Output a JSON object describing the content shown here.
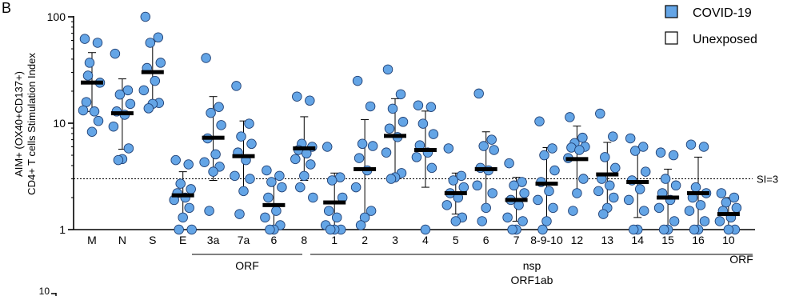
{
  "panel_label": "B",
  "chart_data": {
    "type": "scatter",
    "subtype": "dot plot with geometric mean and 95% CI",
    "ylabel_line1": "AIM+ (OX40+CD137+)",
    "ylabel_line2": "CD4+ T cells Stimulation Index",
    "yscale": "log",
    "ylim": [
      1,
      100
    ],
    "yticks": [
      {
        "value": 1,
        "label": "1"
      },
      {
        "value": 10,
        "label": "10"
      },
      {
        "value": 100,
        "label": "100"
      }
    ],
    "categories": [
      "M",
      "N",
      "S",
      "E",
      "3a",
      "7a",
      "6",
      "8",
      "1",
      "2",
      "3",
      "4",
      "5",
      "6",
      "7",
      "8-9-10",
      "12",
      "13",
      "14",
      "15",
      "16",
      "10"
    ],
    "group_labels": [
      {
        "label": "ORF",
        "from": 4,
        "to": 7
      },
      {
        "label": "nsp",
        "from": 7,
        "to": 20
      },
      {
        "label": "ORF1ab",
        "from": 7,
        "to": 20
      },
      {
        "label": "ORF",
        "from": 21,
        "to": 21
      }
    ],
    "reference_line": {
      "value": 3,
      "label": "SI=3",
      "style": "dotted"
    },
    "legend": [
      {
        "label": "COVID-19",
        "color": "#64a5e6",
        "filled": true
      },
      {
        "label": "Unexposed",
        "color": "#ffffff",
        "filled": false
      }
    ],
    "legend_position": "top-right",
    "point_color": "#64a5e6",
    "series": [
      {
        "name": "COVID-19",
        "groups": [
          {
            "category": "M",
            "mean": 24.1,
            "ci": [
              12.9,
              46.1
            ],
            "points": [
              62,
              57,
              37,
              24,
              15.8,
              12.9,
              13.2,
              10.5,
              8.3,
              28
            ]
          },
          {
            "category": "N",
            "mean": 12.4,
            "ci": [
              5.7,
              26.1
            ],
            "points": [
              45,
              20.4,
              18.6,
              15.2,
              12.9,
              12.0,
              9.3,
              5.8,
              4.6,
              4.5
            ]
          },
          {
            "category": "S",
            "mean": 30.2,
            "ci": [
              15.7,
              58.5
            ],
            "points": [
              100,
              64,
              57,
              37,
              33,
              25,
              20.4,
              15.5,
              15.2,
              13.8
            ]
          },
          {
            "category": "E",
            "mean": 2.1,
            "ci": [
              1.25,
              3.5
            ],
            "points": [
              4.5,
              4.1,
              2.7,
              2.4,
              2.2,
              2.0,
              1.9,
              1.6,
              1.3,
              1.0,
              1.0
            ]
          },
          {
            "category": "3a",
            "mean": 7.3,
            "ci": [
              2.9,
              17.8
            ],
            "points": [
              41,
              14.2,
              12.5,
              9.6,
              7.2,
              5.1,
              4.3,
              3.9,
              3.5,
              1.5
            ]
          },
          {
            "category": "7a",
            "mean": 4.9,
            "ci": [
              2.3,
              10.5
            ],
            "points": [
              22.4,
              9.9,
              7.5,
              6.4,
              5.3,
              4.5,
              3.2,
              3.0,
              2.3,
              1.4
            ]
          },
          {
            "category": "6",
            "mean": 1.7,
            "ci": [
              1.0,
              3.0
            ],
            "points": [
              3.6,
              3.2,
              2.8,
              2.5,
              2.0,
              1.5,
              1.3,
              1.1,
              1.0,
              1.0
            ]
          },
          {
            "category": "8",
            "mean": 5.8,
            "ci": [
              2.9,
              11.5
            ],
            "points": [
              17.8,
              16.3,
              6.4,
              6.0,
              5.6,
              5.2,
              4.6,
              4.1,
              3.2,
              2.5,
              2.0
            ]
          },
          {
            "category": "1",
            "mean": 1.8,
            "ci": [
              1.0,
              3.4
            ],
            "points": [
              6.0,
              3.1,
              2.9,
              2.0,
              1.5,
              1.3,
              1.1,
              1.0,
              1.0,
              1.0
            ]
          },
          {
            "category": "2",
            "mean": 3.7,
            "ci": [
              1.3,
              10.8
            ],
            "points": [
              25,
              14.4,
              6.4,
              6.1,
              4.7,
              3.6,
              2.5,
              1.5,
              1.3,
              1.1
            ]
          },
          {
            "category": "3",
            "mean": 7.6,
            "ci": [
              3.3,
              17.0
            ],
            "points": [
              32,
              18.7,
              13.7,
              10.3,
              8.9,
              7.4,
              5.3,
              3.4,
              3.1,
              3.0
            ]
          },
          {
            "category": "4",
            "mean": 5.6,
            "ci": [
              2.5,
              13.0
            ],
            "points": [
              14.7,
              14.2,
              9.9,
              7.9,
              6.2,
              5.3,
              4.8,
              3.8,
              1.0
            ]
          },
          {
            "category": "5",
            "mean": 2.2,
            "ci": [
              1.4,
              3.4
            ],
            "points": [
              5.8,
              3.2,
              2.9,
              2.5,
              2.2,
              2.0,
              1.7,
              1.3,
              1.2
            ]
          },
          {
            "category": "6",
            "mean": 3.7,
            "ci": [
              1.5,
              8.3
            ],
            "points": [
              19,
              7.0,
              6.1,
              5.6,
              3.8,
              3.6,
              2.6,
              2.2,
              1.6,
              1.2
            ]
          },
          {
            "category": "7",
            "mean": 1.9,
            "ci": [
              1.2,
              3.1
            ],
            "points": [
              4.2,
              2.8,
              2.6,
              2.2,
              1.9,
              1.7,
              1.3,
              1.2,
              1.0,
              1.0
            ]
          },
          {
            "category": "8-9-10",
            "mean": 2.7,
            "ci": [
              1.2,
              5.9
            ],
            "points": [
              10.4,
              5.8,
              5.0,
              3.6,
              2.8,
              2.3,
              1.9,
              1.6,
              1.2,
              1.0
            ]
          },
          {
            "category": "12",
            "mean": 4.6,
            "ci": [
              2.2,
              9.4
            ],
            "points": [
              11.4,
              7.3,
              6.5,
              6.0,
              5.9,
              5.6,
              4.7,
              3.0,
              2.2,
              1.5
            ]
          },
          {
            "category": "13",
            "mean": 3.3,
            "ci": [
              1.6,
              6.6
            ],
            "points": [
              12.3,
              7.5,
              4.8,
              3.8,
              3.0,
              2.6,
              2.3,
              2.0,
              1.6,
              1.4
            ]
          },
          {
            "category": "14",
            "mean": 2.8,
            "ci": [
              1.3,
              6.0
            ],
            "points": [
              7.2,
              6.0,
              5.5,
              3.5,
              2.9,
              2.4,
              1.9,
              1.5,
              1.0,
              1.0
            ]
          },
          {
            "category": "15",
            "mean": 2.0,
            "ci": [
              1.0,
              3.7
            ],
            "points": [
              5.3,
              5.0,
              3.0,
              2.6,
              2.2,
              1.9,
              1.6,
              1.2,
              1.0,
              1.0
            ]
          },
          {
            "category": "16",
            "mean": 2.2,
            "ci": [
              1.0,
              4.8
            ],
            "points": [
              6.3,
              6.0,
              2.5,
              2.2,
              2.0,
              1.7,
              1.5,
              1.2,
              1.0,
              1.0
            ]
          },
          {
            "category": "10",
            "mean": 1.4,
            "ci": [
              1.0,
              2.0
            ],
            "points": [
              2.2,
              2.0,
              1.8,
              1.6,
              1.5,
              1.3,
              1.2,
              1.0,
              1.0
            ]
          }
        ]
      }
    ]
  },
  "second_panel": {
    "ytick_top": "10"
  }
}
